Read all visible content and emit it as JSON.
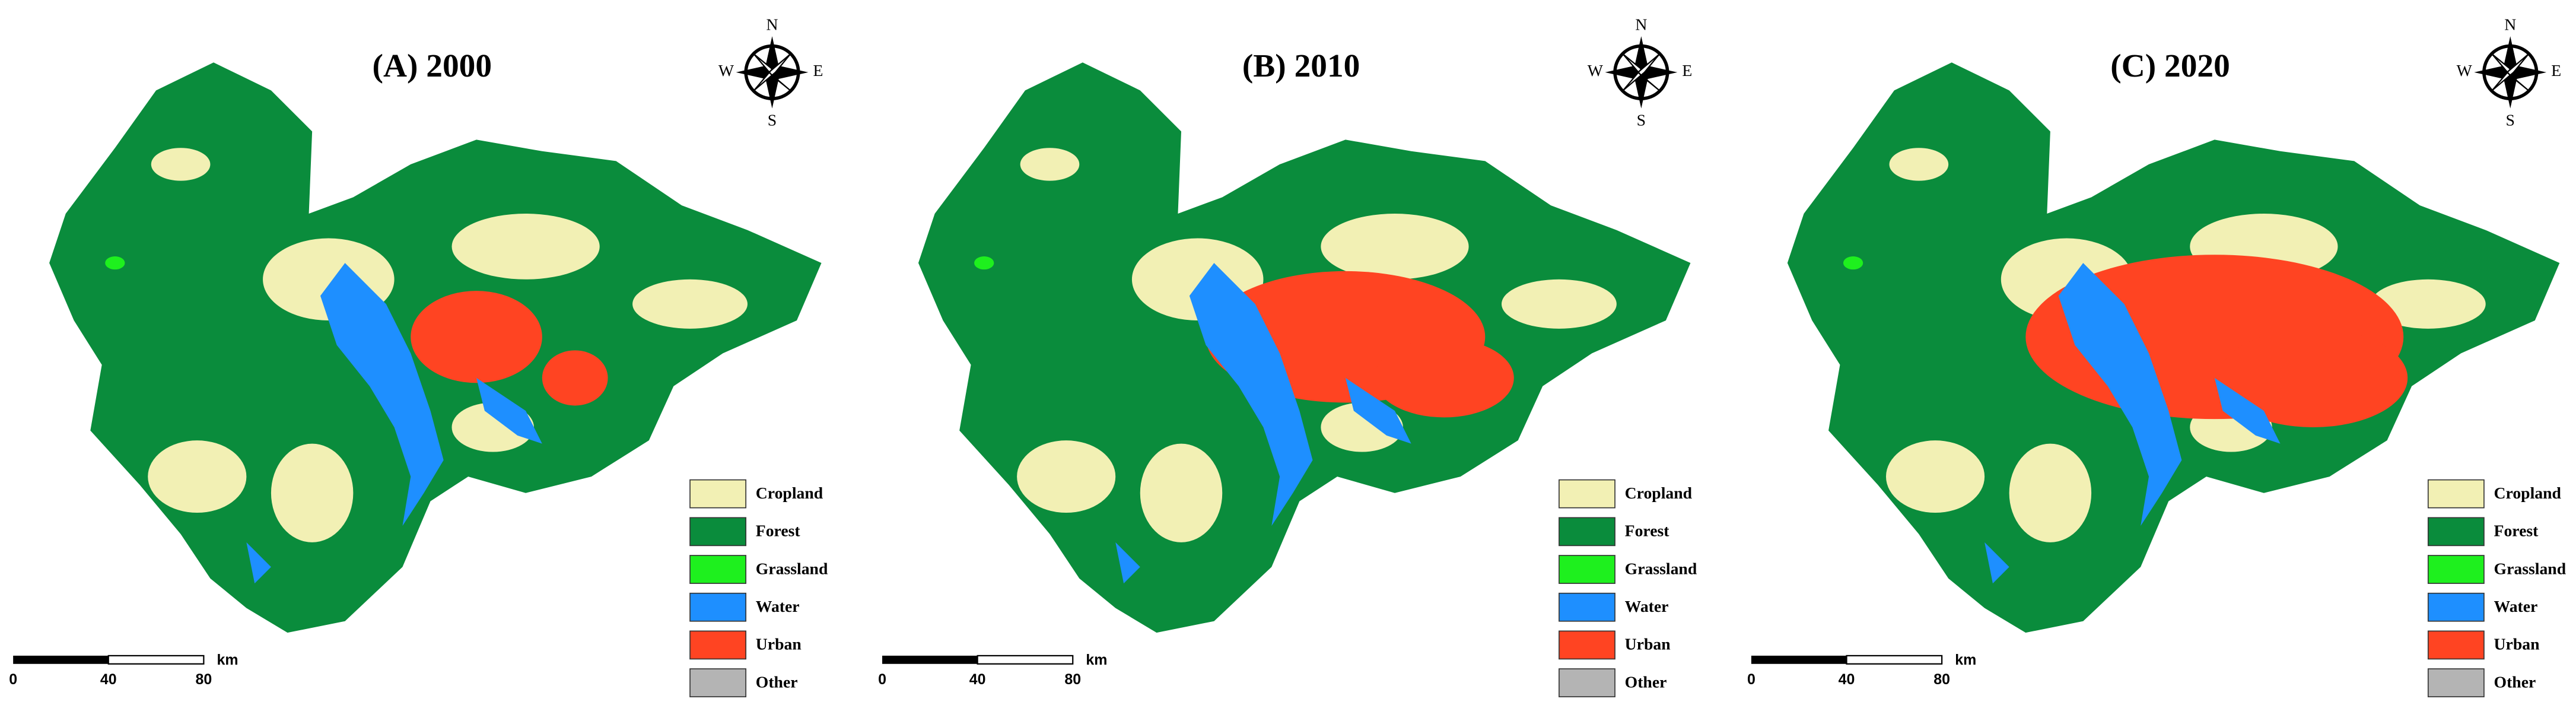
{
  "panels": [
    {
      "title": "(A) 2000"
    },
    {
      "title": "(B) 2010"
    },
    {
      "title": "(C) 2020"
    }
  ],
  "compass": {
    "n": "N",
    "s": "S",
    "w": "W",
    "e": "E"
  },
  "legend": [
    {
      "label": "Cropland",
      "color": "#f2f0b4"
    },
    {
      "label": "Forest",
      "color": "#0a8c3c"
    },
    {
      "label": "Grassland",
      "color": "#1ef01e"
    },
    {
      "label": "Water",
      "color": "#1e8fff"
    },
    {
      "label": "Urban",
      "color": "#ff4422"
    },
    {
      "label": "Other",
      "color": "#b4b4b4"
    }
  ],
  "scale_bar": {
    "ticks": [
      "0",
      "40",
      "80"
    ],
    "unit": "km"
  }
}
